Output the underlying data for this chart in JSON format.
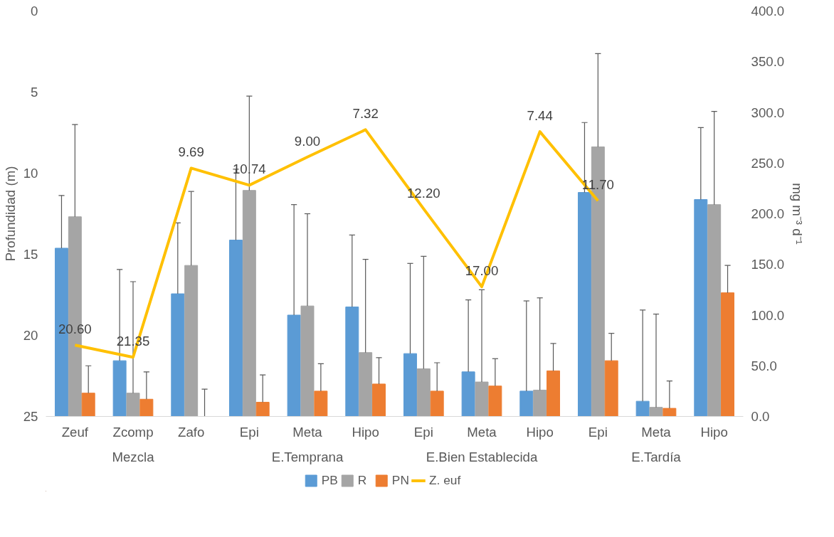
{
  "chart_data": {
    "type": "bar",
    "ylabel": "Profundidad (m)",
    "y2label": "mg m⁻³ d⁻¹",
    "categories": [
      "Zeuf",
      "Zcomp",
      "Zafo",
      "Epi",
      "Meta",
      "Hipo",
      "Epi",
      "Meta",
      "Hipo",
      "Epi",
      "Meta",
      "Hipo"
    ],
    "annotations": [
      "Mezcla",
      "E.Temprana",
      "E.Bien Establecida",
      "E.Tardía"
    ],
    "ylim": [
      25,
      0
    ],
    "yticks": [
      0,
      5,
      10,
      15,
      20,
      25
    ],
    "y2lim": [
      0,
      400
    ],
    "y2ticks": [
      {
        "value": 0,
        "label": "0.0"
      },
      {
        "value": 50,
        "label": "50.0"
      },
      {
        "value": 100,
        "label": "100.0"
      },
      {
        "value": 150,
        "label": "150.0"
      },
      {
        "value": 200,
        "label": "200.0"
      },
      {
        "value": 250,
        "label": "250.0"
      },
      {
        "value": 300,
        "label": "300.0"
      },
      {
        "value": 350,
        "label": "350.0"
      },
      {
        "value": 400,
        "label": "400.0"
      }
    ],
    "legend": "bottom",
    "grid": false,
    "series": [
      {
        "name": "PB",
        "axis": "y2",
        "color": "#5b9bd5",
        "values": [
          166,
          55,
          121,
          174,
          100,
          108,
          62,
          44,
          25,
          221,
          15,
          214
        ],
        "errors": [
          [
            166,
            218
          ],
          [
            55,
            145
          ],
          [
            121,
            191
          ],
          [
            174,
            244
          ],
          [
            100,
            209
          ],
          [
            108,
            179
          ],
          [
            62,
            151
          ],
          [
            44,
            115
          ],
          [
            25,
            114
          ],
          [
            221,
            290
          ],
          [
            15,
            105
          ],
          [
            214,
            285
          ]
        ]
      },
      {
        "name": "R",
        "axis": "y2",
        "color": "#a5a5a5",
        "values": [
          197,
          23,
          149,
          223,
          109,
          63,
          47,
          34,
          26,
          266,
          9,
          209
        ],
        "errors": [
          [
            197,
            288
          ],
          [
            23,
            133
          ],
          [
            149,
            222
          ],
          [
            223,
            316
          ],
          [
            109,
            200
          ],
          [
            63,
            155
          ],
          [
            47,
            158
          ],
          [
            34,
            125
          ],
          [
            26,
            117
          ],
          [
            266,
            358
          ],
          [
            9,
            101
          ],
          [
            209,
            301
          ]
        ]
      },
      {
        "name": "PN",
        "axis": "y2",
        "color": "#ed7d31",
        "values": [
          23,
          17,
          0,
          14,
          25,
          32,
          25,
          30,
          45,
          55,
          8,
          122
        ],
        "errors": [
          [
            23,
            50
          ],
          [
            17,
            44
          ],
          [
            0,
            27
          ],
          [
            14,
            41
          ],
          [
            25,
            52
          ],
          [
            32,
            58
          ],
          [
            25,
            53
          ],
          [
            30,
            57
          ],
          [
            45,
            72
          ],
          [
            55,
            82
          ],
          [
            8,
            35
          ],
          [
            122,
            149
          ]
        ]
      },
      {
        "name": "Z. euf",
        "type": "line",
        "axis": "y",
        "color": "#ffc000",
        "values": [
          20.6,
          21.35,
          9.69,
          10.74,
          9.0,
          7.32,
          12.2,
          17.0,
          7.44,
          11.7,
          null,
          null
        ],
        "value_labels": [
          "20.60",
          "21.35",
          "9.69",
          "10.74",
          "9.00",
          "7.32",
          "12.20",
          "17.00",
          "7.44",
          "11.70",
          null,
          null
        ]
      }
    ]
  }
}
